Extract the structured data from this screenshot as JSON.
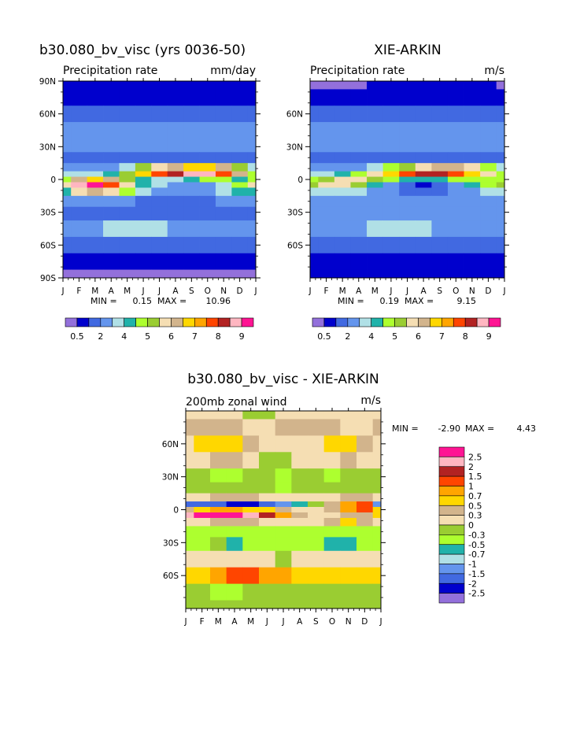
{
  "chart_data": [
    {
      "type": "heatmap",
      "title": "b30.080_bv_visc (yrs 0036-50)",
      "subtitle": "Precipitation rate",
      "units": "mm/day",
      "x_ticks": [
        "J",
        "F",
        "M",
        "A",
        "M",
        "J",
        "J",
        "A",
        "S",
        "O",
        "N",
        "D",
        "J"
      ],
      "y_ticks": [
        "90N",
        "60N",
        "30N",
        "0",
        "30S",
        "60S",
        "90S"
      ],
      "stats": {
        "min_label": "MIN =",
        "min": "0.15",
        "max_label": "MAX =",
        "max": "10.96"
      },
      "legend_labels": [
        "0.5",
        "2",
        "4",
        "5",
        "6",
        "7",
        "8",
        "9"
      ],
      "legend_colors": [
        "#9370db",
        "#0000cd",
        "#4169e1",
        "#6495ed",
        "#b0e0e6",
        "#20b2aa",
        "#adff2f",
        "#9acd32",
        "#f5deb3",
        "#d2b48c",
        "#ffd700",
        "#ffa500",
        "#ff4500",
        "#b22222",
        "#ffb6c1",
        "#ff1493"
      ],
      "x": [
        "J",
        "F",
        "M",
        "A",
        "M",
        "J",
        "J",
        "A",
        "S",
        "O",
        "N",
        "D",
        "J"
      ],
      "y": [
        90,
        75,
        60,
        45,
        30,
        20,
        10,
        5,
        0,
        -5,
        -10,
        -20,
        -30,
        -45,
        -60,
        -75,
        -90
      ],
      "values": [
        [
          1,
          1,
          1,
          1,
          1,
          1,
          1,
          1,
          1,
          1,
          1,
          1,
          1
        ],
        [
          1,
          1,
          1,
          1,
          1,
          1,
          1,
          1,
          1,
          1,
          1,
          1,
          1
        ],
        [
          2,
          2,
          2,
          2,
          2,
          2,
          2,
          2,
          2,
          2,
          2,
          2,
          2
        ],
        [
          3,
          3,
          3,
          3,
          3,
          3,
          3,
          3,
          3,
          3,
          3,
          3,
          3
        ],
        [
          3,
          3,
          3,
          3,
          3,
          3,
          3,
          3,
          3,
          3,
          3,
          3,
          3
        ],
        [
          2,
          2,
          2,
          2,
          2,
          2,
          2,
          2,
          2,
          2,
          2,
          2,
          2
        ],
        [
          3,
          3,
          3,
          3,
          4,
          7,
          8,
          9,
          10,
          10,
          9,
          7,
          4
        ],
        [
          4,
          4,
          4,
          5,
          7,
          10,
          12,
          13,
          14,
          14,
          12,
          9,
          6
        ],
        [
          6,
          9,
          10,
          9,
          7,
          5,
          4,
          4,
          5,
          6,
          6,
          5,
          6
        ],
        [
          8,
          14,
          15,
          12,
          8,
          5,
          4,
          3,
          3,
          3,
          4,
          6,
          8
        ],
        [
          5,
          8,
          9,
          8,
          6,
          4,
          3,
          3,
          3,
          3,
          4,
          5,
          5
        ],
        [
          3,
          3,
          3,
          3,
          3,
          2,
          2,
          2,
          2,
          2,
          3,
          3,
          3
        ],
        [
          2,
          2,
          2,
          2,
          2,
          2,
          2,
          2,
          2,
          2,
          2,
          2,
          2
        ],
        [
          3,
          3,
          3,
          4,
          4,
          4,
          4,
          3,
          3,
          3,
          3,
          3,
          3
        ],
        [
          2,
          2,
          2,
          2,
          2,
          2,
          2,
          2,
          2,
          2,
          2,
          2,
          2
        ],
        [
          1,
          1,
          1,
          1,
          1,
          1,
          1,
          1,
          1,
          1,
          1,
          1,
          1
        ],
        [
          0,
          0,
          0,
          0,
          0,
          0,
          0,
          0,
          0,
          0,
          0,
          0,
          0
        ]
      ]
    },
    {
      "type": "heatmap",
      "title": "XIE-ARKIN",
      "subtitle": "Precipitation rate",
      "units": "m/s",
      "x_ticks": [
        "J",
        "F",
        "M",
        "A",
        "M",
        "J",
        "J",
        "A",
        "S",
        "O",
        "N",
        "D",
        "J"
      ],
      "y_ticks": [
        "60N",
        "30N",
        "0",
        "30S",
        "60S"
      ],
      "stats": {
        "min_label": "MIN =",
        "min": "0.19",
        "max_label": "MAX =",
        "max": "9.15"
      },
      "legend_labels": [
        "0.5",
        "2",
        "4",
        "5",
        "6",
        "7",
        "8",
        "9"
      ],
      "legend_colors": [
        "#9370db",
        "#0000cd",
        "#4169e1",
        "#6495ed",
        "#b0e0e6",
        "#20b2aa",
        "#adff2f",
        "#9acd32",
        "#f5deb3",
        "#d2b48c",
        "#ffd700",
        "#ffa500",
        "#ff4500",
        "#b22222",
        "#ffb6c1",
        "#ff1493"
      ],
      "x": [
        "J",
        "F",
        "M",
        "A",
        "M",
        "J",
        "J",
        "A",
        "S",
        "O",
        "N",
        "D",
        "J"
      ],
      "y": [
        90,
        75,
        60,
        45,
        30,
        20,
        10,
        5,
        0,
        -5,
        -10,
        -20,
        -30,
        -45,
        -60,
        -75,
        -90
      ],
      "values": [
        [
          0,
          0,
          0,
          0,
          1,
          1,
          1,
          1,
          1,
          1,
          1,
          1,
          0
        ],
        [
          1,
          1,
          1,
          1,
          1,
          1,
          1,
          1,
          1,
          1,
          1,
          1,
          1
        ],
        [
          2,
          2,
          2,
          2,
          2,
          2,
          2,
          2,
          2,
          2,
          2,
          2,
          2
        ],
        [
          3,
          3,
          3,
          3,
          3,
          3,
          3,
          3,
          3,
          3,
          3,
          3,
          3
        ],
        [
          3,
          3,
          3,
          3,
          3,
          3,
          3,
          3,
          3,
          3,
          3,
          3,
          3
        ],
        [
          2,
          2,
          2,
          2,
          2,
          2,
          2,
          2,
          2,
          2,
          2,
          2,
          2
        ],
        [
          3,
          3,
          3,
          3,
          4,
          6,
          7,
          8,
          9,
          9,
          8,
          6,
          4
        ],
        [
          4,
          4,
          5,
          6,
          8,
          10,
          12,
          13,
          13,
          12,
          10,
          8,
          6
        ],
        [
          6,
          7,
          8,
          8,
          7,
          6,
          5,
          5,
          5,
          6,
          6,
          6,
          6
        ],
        [
          7,
          8,
          8,
          7,
          5,
          3,
          2,
          1,
          2,
          3,
          5,
          6,
          7
        ],
        [
          4,
          4,
          4,
          4,
          3,
          3,
          2,
          2,
          2,
          3,
          3,
          4,
          4
        ],
        [
          3,
          3,
          3,
          3,
          3,
          3,
          3,
          3,
          3,
          3,
          3,
          3,
          3
        ],
        [
          3,
          3,
          3,
          3,
          3,
          3,
          3,
          3,
          3,
          3,
          3,
          3,
          3
        ],
        [
          3,
          3,
          3,
          3,
          4,
          4,
          4,
          4,
          3,
          3,
          3,
          3,
          3
        ],
        [
          2,
          2,
          2,
          2,
          2,
          2,
          2,
          2,
          2,
          2,
          2,
          2,
          2
        ],
        [
          1,
          1,
          1,
          1,
          1,
          1,
          1,
          1,
          1,
          1,
          1,
          1,
          1
        ],
        [
          1,
          1,
          1,
          1,
          1,
          1,
          1,
          1,
          1,
          1,
          1,
          1,
          1
        ]
      ]
    },
    {
      "type": "heatmap",
      "title": "b30.080_bv_visc - XIE-ARKIN",
      "subtitle": "200mb zonal wind",
      "units": "m/s",
      "x_ticks": [
        "J",
        "F",
        "M",
        "A",
        "M",
        "J",
        "J",
        "A",
        "S",
        "O",
        "N",
        "D",
        "J"
      ],
      "y_ticks": [
        "60N",
        "30N",
        "0",
        "30S",
        "60S"
      ],
      "stats": {
        "min_label": "MIN =",
        "min": "-2.90",
        "max_label": "MAX =",
        "max": "4.43"
      },
      "legend_labels": [
        "2.5",
        "2",
        "1.5",
        "1",
        "0.7",
        "0.5",
        "0.3",
        "0",
        "-0.3",
        "-0.5",
        "-0.7",
        "-1",
        "-1.5",
        "-2",
        "-2.5"
      ],
      "legend_colors": [
        "#ff1493",
        "#ffb6c1",
        "#b22222",
        "#ff4500",
        "#ffa500",
        "#ffd700",
        "#d2b48c",
        "#f5deb3",
        "#9acd32",
        "#adff2f",
        "#20b2aa",
        "#b0e0e6",
        "#6495ed",
        "#4169e1",
        "#0000cd",
        "#9370db"
      ],
      "x": [
        "J",
        "F",
        "M",
        "A",
        "M",
        "J",
        "J",
        "A",
        "S",
        "O",
        "N",
        "D",
        "J"
      ],
      "y": [
        90,
        75,
        60,
        45,
        30,
        20,
        10,
        5,
        0,
        -5,
        -10,
        -20,
        -30,
        -45,
        -60,
        -75,
        -90
      ],
      "values": [
        [
          7,
          7,
          7,
          7,
          8,
          8,
          7,
          7,
          7,
          7,
          7,
          7,
          7
        ],
        [
          6,
          6,
          6,
          6,
          7,
          7,
          6,
          6,
          6,
          6,
          7,
          7,
          6
        ],
        [
          7,
          5,
          5,
          5,
          6,
          7,
          7,
          7,
          7,
          5,
          5,
          6,
          7
        ],
        [
          7,
          7,
          6,
          6,
          7,
          8,
          8,
          7,
          7,
          7,
          6,
          7,
          7
        ],
        [
          8,
          8,
          9,
          9,
          8,
          8,
          9,
          8,
          8,
          9,
          8,
          8,
          8
        ],
        [
          8,
          8,
          8,
          8,
          8,
          8,
          9,
          8,
          8,
          8,
          8,
          8,
          8
        ],
        [
          7,
          7,
          6,
          6,
          6,
          7,
          7,
          7,
          7,
          7,
          6,
          6,
          7
        ],
        [
          13,
          13,
          13,
          14,
          14,
          13,
          12,
          10,
          8,
          6,
          4,
          3,
          12
        ],
        [
          6,
          5,
          4,
          4,
          5,
          5,
          6,
          7,
          7,
          6,
          4,
          3,
          5
        ],
        [
          1,
          0,
          0,
          0,
          1,
          2,
          4,
          6,
          7,
          7,
          6,
          6,
          5
        ],
        [
          7,
          7,
          6,
          6,
          6,
          7,
          7,
          7,
          7,
          6,
          5,
          6,
          7
        ],
        [
          9,
          9,
          9,
          9,
          9,
          9,
          9,
          9,
          9,
          9,
          9,
          9,
          9
        ],
        [
          9,
          9,
          8,
          10,
          9,
          9,
          9,
          9,
          9,
          10,
          10,
          9,
          9
        ],
        [
          7,
          7,
          7,
          7,
          7,
          7,
          8,
          7,
          7,
          7,
          7,
          7,
          7
        ],
        [
          5,
          5,
          4,
          3,
          3,
          4,
          4,
          5,
          5,
          5,
          5,
          5,
          5
        ],
        [
          8,
          8,
          9,
          9,
          8,
          8,
          8,
          8,
          8,
          8,
          8,
          8,
          8
        ],
        [
          8,
          8,
          8,
          8,
          8,
          8,
          8,
          8,
          8,
          8,
          8,
          8,
          8
        ]
      ]
    }
  ]
}
